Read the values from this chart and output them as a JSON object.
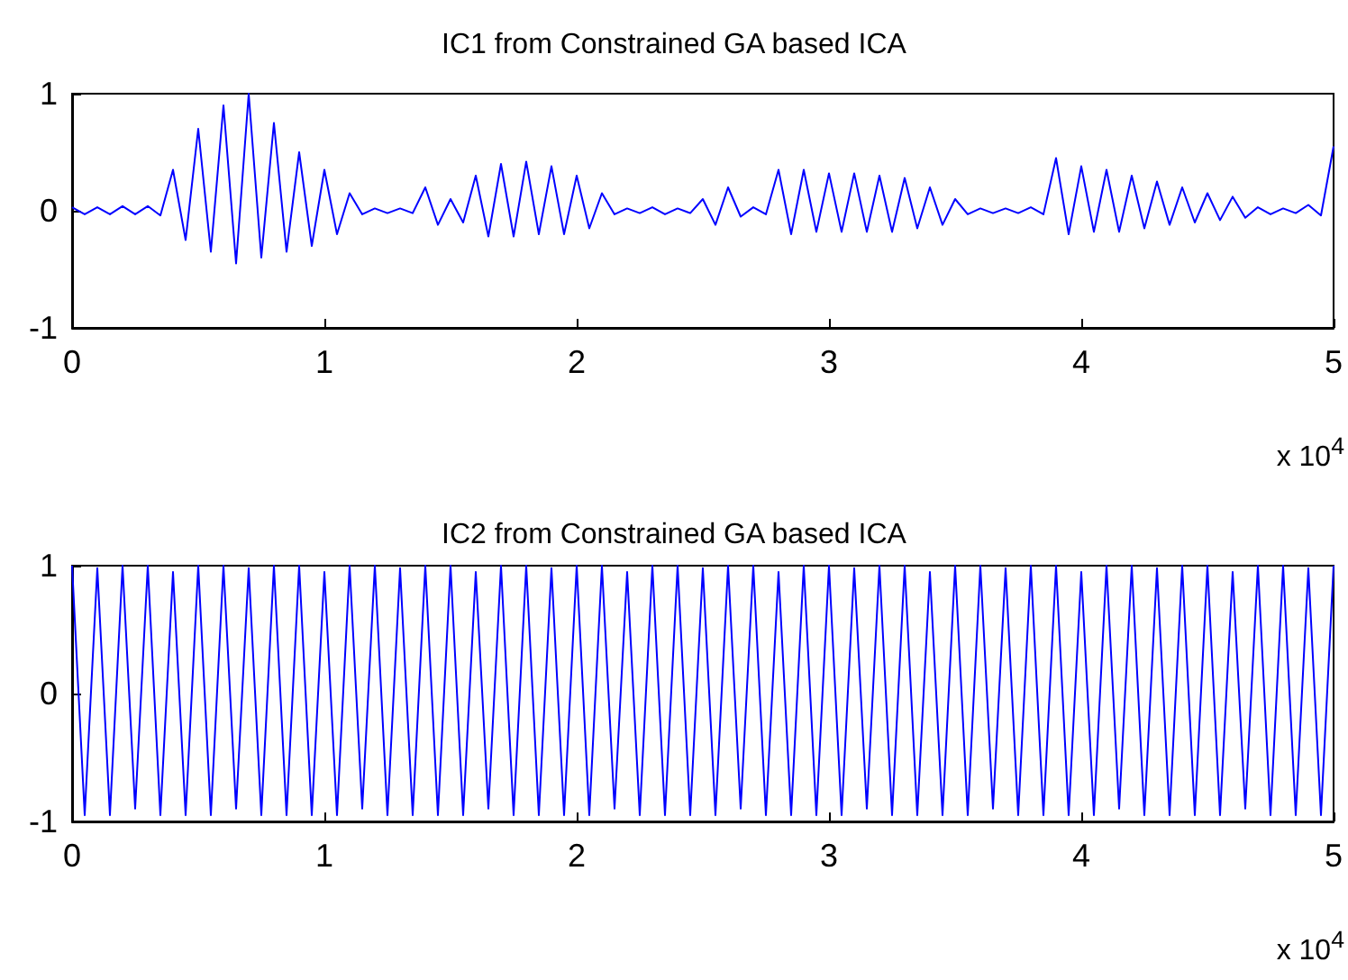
{
  "chart_data": [
    {
      "type": "line",
      "title": "IC1 from Constrained GA based ICA",
      "xlabel": "x 10$^{4}$",
      "xlim": [
        0,
        5
      ],
      "xticks": [
        0,
        1,
        2,
        3,
        4,
        5
      ],
      "ylim": [
        -1,
        1
      ],
      "yticks": [
        -1,
        0,
        1
      ],
      "grid": false,
      "marker": "none",
      "line_style": "solid",
      "series": [
        {
          "color": "#0000ff",
          "x": [
            0,
            0.05,
            0.1,
            0.15,
            0.2,
            0.25,
            0.3,
            0.35,
            0.4,
            0.45,
            0.5,
            0.55,
            0.6,
            0.65,
            0.7,
            0.75,
            0.8,
            0.85,
            0.9,
            0.95,
            1,
            1.05,
            1.1,
            1.15,
            1.2,
            1.25,
            1.3,
            1.35,
            1.4,
            1.45,
            1.5,
            1.55,
            1.6,
            1.65,
            1.7,
            1.75,
            1.8,
            1.85,
            1.9,
            1.95,
            2,
            2.05,
            2.1,
            2.15,
            2.2,
            2.25,
            2.3,
            2.35,
            2.4,
            2.45,
            2.5,
            2.55,
            2.6,
            2.65,
            2.7,
            2.75,
            2.8,
            2.85,
            2.9,
            2.95,
            3,
            3.05,
            3.1,
            3.15,
            3.2,
            3.25,
            3.3,
            3.35,
            3.4,
            3.45,
            3.5,
            3.55,
            3.6,
            3.65,
            3.7,
            3.75,
            3.8,
            3.85,
            3.9,
            3.95,
            4,
            4.05,
            4.1,
            4.15,
            4.2,
            4.25,
            4.3,
            4.35,
            4.4,
            4.45,
            4.5,
            4.55,
            4.6,
            4.65,
            4.7,
            4.75,
            4.8,
            4.85,
            4.9,
            4.95,
            5
          ],
          "values": [
            0.03,
            -0.03,
            0.03,
            -0.03,
            0.04,
            -0.03,
            0.04,
            -0.04,
            0.35,
            -0.25,
            0.7,
            -0.35,
            0.9,
            -0.45,
            1.0,
            -0.4,
            0.75,
            -0.35,
            0.5,
            -0.3,
            0.35,
            -0.2,
            0.15,
            -0.03,
            0.02,
            -0.02,
            0.02,
            -0.02,
            0.2,
            -0.12,
            0.1,
            -0.1,
            0.3,
            -0.22,
            0.4,
            -0.22,
            0.42,
            -0.2,
            0.38,
            -0.2,
            0.3,
            -0.15,
            0.15,
            -0.03,
            0.02,
            -0.02,
            0.03,
            -0.03,
            0.02,
            -0.02,
            0.1,
            -0.12,
            0.2,
            -0.05,
            0.03,
            -0.03,
            0.35,
            -0.2,
            0.35,
            -0.18,
            0.32,
            -0.18,
            0.32,
            -0.18,
            0.3,
            -0.18,
            0.28,
            -0.15,
            0.2,
            -0.12,
            0.1,
            -0.03,
            0.02,
            -0.02,
            0.02,
            -0.02,
            0.03,
            -0.03,
            0.45,
            -0.2,
            0.38,
            -0.18,
            0.35,
            -0.18,
            0.3,
            -0.15,
            0.25,
            -0.12,
            0.2,
            -0.1,
            0.15,
            -0.08,
            0.12,
            -0.06,
            0.03,
            -0.03,
            0.02,
            -0.02,
            0.05,
            -0.04,
            0.55
          ]
        }
      ]
    },
    {
      "type": "line",
      "title": "IC2 from Constrained GA based ICA",
      "xlabel": "x 10$^{4}$",
      "xlim": [
        0,
        5
      ],
      "xticks": [
        0,
        1,
        2,
        3,
        4,
        5
      ],
      "ylim": [
        -1,
        1
      ],
      "yticks": [
        -1,
        0,
        1
      ],
      "grid": false,
      "marker": "none",
      "line_style": "solid",
      "series": [
        {
          "color": "#0000ff",
          "x": [
            0,
            0.05,
            0.1,
            0.15,
            0.2,
            0.25,
            0.3,
            0.35,
            0.4,
            0.45,
            0.5,
            0.55,
            0.6,
            0.65,
            0.7,
            0.75,
            0.8,
            0.85,
            0.9,
            0.95,
            1,
            1.05,
            1.1,
            1.15,
            1.2,
            1.25,
            1.3,
            1.35,
            1.4,
            1.45,
            1.5,
            1.55,
            1.6,
            1.65,
            1.7,
            1.75,
            1.8,
            1.85,
            1.9,
            1.95,
            2,
            2.05,
            2.1,
            2.15,
            2.2,
            2.25,
            2.3,
            2.35,
            2.4,
            2.45,
            2.5,
            2.55,
            2.6,
            2.65,
            2.7,
            2.75,
            2.8,
            2.85,
            2.9,
            2.95,
            3,
            3.05,
            3.1,
            3.15,
            3.2,
            3.25,
            3.3,
            3.35,
            3.4,
            3.45,
            3.5,
            3.55,
            3.6,
            3.65,
            3.7,
            3.75,
            3.8,
            3.85,
            3.9,
            3.95,
            4,
            4.05,
            4.1,
            4.15,
            4.2,
            4.25,
            4.3,
            4.35,
            4.4,
            4.45,
            4.5,
            4.55,
            4.6,
            4.65,
            4.7,
            4.75,
            4.8,
            4.85,
            4.9,
            4.95,
            5
          ],
          "values": [
            1,
            -0.95,
            0.98,
            -0.95,
            1,
            -0.9,
            1,
            -0.95,
            0.95,
            -0.95,
            1,
            -0.95,
            1,
            -0.9,
            0.98,
            -0.95,
            1,
            -0.95,
            1,
            -0.95,
            0.95,
            -0.95,
            1,
            -0.9,
            1,
            -0.95,
            0.98,
            -0.95,
            1,
            -0.95,
            1,
            -0.95,
            0.95,
            -0.9,
            1,
            -0.95,
            1,
            -0.95,
            0.98,
            -0.95,
            1,
            -0.95,
            1,
            -0.9,
            0.95,
            -0.95,
            1,
            -0.95,
            1,
            -0.95,
            0.98,
            -0.95,
            1,
            -0.9,
            1,
            -0.95,
            0.95,
            -0.95,
            1,
            -0.95,
            1,
            -0.95,
            0.98,
            -0.9,
            1,
            -0.95,
            1,
            -0.95,
            0.95,
            -0.95,
            1,
            -0.95,
            1,
            -0.9,
            0.98,
            -0.95,
            1,
            -0.95,
            1,
            -0.95,
            0.95,
            -0.95,
            1,
            -0.9,
            1,
            -0.95,
            0.98,
            -0.95,
            1,
            -0.95,
            1,
            -0.95,
            0.95,
            -0.9,
            1,
            -0.95,
            1,
            -0.95,
            0.98,
            -0.95,
            1
          ]
        }
      ]
    }
  ]
}
